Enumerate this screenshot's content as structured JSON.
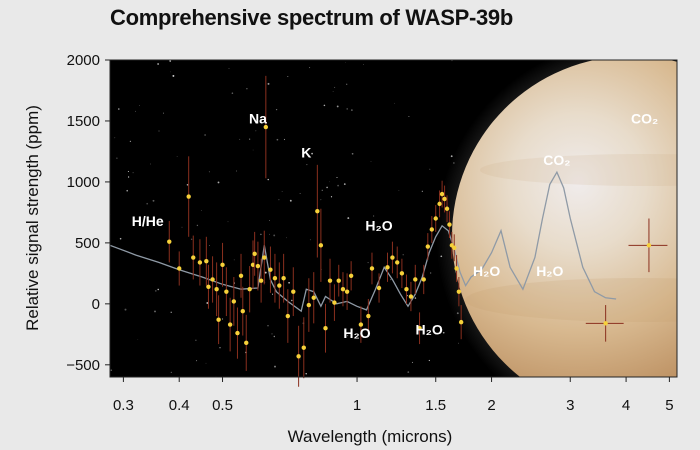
{
  "chart_data": {
    "type": "scatter",
    "title": "Comprehensive spectrum of WASP-39b",
    "xlabel": "Wavelength (microns)",
    "ylabel": "Relative signal strength (ppm)",
    "xscale": "log",
    "xlim": [
      0.28,
      5.2
    ],
    "ylim": [
      -600,
      2000
    ],
    "xticks": [
      0.3,
      0.4,
      0.5,
      1,
      1.5,
      2,
      3,
      4,
      5
    ],
    "xtick_labels": [
      "0.3",
      "0.4",
      "0.5",
      "1",
      "1.5",
      "2",
      "3",
      "4",
      "5"
    ],
    "yticks": [
      2000,
      1500,
      1000,
      500,
      0,
      -500
    ],
    "ytick_labels": [
      "2000",
      "1500",
      "1000",
      "500",
      "0",
      "−500"
    ],
    "grid": false,
    "colors": {
      "points": "#f6d13a",
      "error_bars": "#8a2f1e",
      "model_line": "#8f9aa6",
      "background": "#000000",
      "planet": "#d9b890"
    },
    "annotations": [
      {
        "label": "H/He",
        "x": 0.34,
        "y": 640
      },
      {
        "label": "Na",
        "x": 0.6,
        "y": 1480
      },
      {
        "label": "K",
        "x": 0.77,
        "y": 1200
      },
      {
        "label": "H₂O",
        "x": 1.12,
        "y": 600
      },
      {
        "label": "H₂O",
        "x": 1.0,
        "y": -280
      },
      {
        "label": "H₂O",
        "x": 1.45,
        "y": -250
      },
      {
        "label": "H₂O",
        "x": 1.95,
        "y": 230
      },
      {
        "label": "H₂O",
        "x": 2.7,
        "y": 230
      },
      {
        "label": "CO₂",
        "x": 2.8,
        "y": 1140
      },
      {
        "label": "CO₂",
        "x": 4.4,
        "y": 1480
      }
    ],
    "series": [
      {
        "type": "scatter",
        "points": [
          {
            "x": 0.38,
            "y": 510,
            "err": 170
          },
          {
            "x": 0.4,
            "y": 290,
            "err": 140
          },
          {
            "x": 0.42,
            "y": 880,
            "err": 330
          },
          {
            "x": 0.43,
            "y": 380,
            "err": 180
          },
          {
            "x": 0.445,
            "y": 340,
            "err": 190
          },
          {
            "x": 0.46,
            "y": 350,
            "err": 200
          },
          {
            "x": 0.465,
            "y": 140,
            "err": 180
          },
          {
            "x": 0.475,
            "y": 200,
            "err": 190
          },
          {
            "x": 0.485,
            "y": 120,
            "err": 220
          },
          {
            "x": 0.49,
            "y": -130,
            "err": 200
          },
          {
            "x": 0.5,
            "y": 320,
            "err": 180
          },
          {
            "x": 0.51,
            "y": 100,
            "err": 200
          },
          {
            "x": 0.52,
            "y": -170,
            "err": 220
          },
          {
            "x": 0.53,
            "y": 20,
            "err": 200
          },
          {
            "x": 0.54,
            "y": -240,
            "err": 210
          },
          {
            "x": 0.55,
            "y": 230,
            "err": 180
          },
          {
            "x": 0.555,
            "y": -60,
            "err": 200
          },
          {
            "x": 0.565,
            "y": -320,
            "err": 230
          },
          {
            "x": 0.575,
            "y": 120,
            "err": 190
          },
          {
            "x": 0.585,
            "y": 320,
            "err": 200
          },
          {
            "x": 0.59,
            "y": 410,
            "err": 180
          },
          {
            "x": 0.6,
            "y": 310,
            "err": 200
          },
          {
            "x": 0.61,
            "y": 190,
            "err": 180
          },
          {
            "x": 0.62,
            "y": 380,
            "err": 220
          },
          {
            "x": 0.625,
            "y": 1450,
            "err": 420
          },
          {
            "x": 0.64,
            "y": 280,
            "err": 190
          },
          {
            "x": 0.655,
            "y": 210,
            "err": 200
          },
          {
            "x": 0.67,
            "y": 150,
            "err": 190
          },
          {
            "x": 0.685,
            "y": 210,
            "err": 200
          },
          {
            "x": 0.7,
            "y": -100,
            "err": 220
          },
          {
            "x": 0.72,
            "y": 100,
            "err": 200
          },
          {
            "x": 0.74,
            "y": -430,
            "err": 250
          },
          {
            "x": 0.76,
            "y": -360,
            "err": 250
          },
          {
            "x": 0.78,
            "y": -10,
            "err": 220
          },
          {
            "x": 0.8,
            "y": 50,
            "err": 210
          },
          {
            "x": 0.815,
            "y": 760,
            "err": 380
          },
          {
            "x": 0.83,
            "y": 480,
            "err": 300
          },
          {
            "x": 0.85,
            "y": -200,
            "err": 200
          },
          {
            "x": 0.87,
            "y": 190,
            "err": 180
          },
          {
            "x": 0.89,
            "y": 10,
            "err": 150
          },
          {
            "x": 0.91,
            "y": 190,
            "err": 130
          },
          {
            "x": 0.93,
            "y": 120,
            "err": 140
          },
          {
            "x": 0.95,
            "y": 100,
            "err": 150
          },
          {
            "x": 0.97,
            "y": 230,
            "err": 120
          },
          {
            "x": 1.02,
            "y": -170,
            "err": 150
          },
          {
            "x": 1.06,
            "y": -100,
            "err": 140
          },
          {
            "x": 1.08,
            "y": 290,
            "err": 130
          },
          {
            "x": 1.12,
            "y": 130,
            "err": 120
          },
          {
            "x": 1.17,
            "y": 300,
            "err": 120
          },
          {
            "x": 1.2,
            "y": 380,
            "err": 130
          },
          {
            "x": 1.23,
            "y": 340,
            "err": 130
          },
          {
            "x": 1.26,
            "y": 250,
            "err": 120
          },
          {
            "x": 1.29,
            "y": 120,
            "err": 120
          },
          {
            "x": 1.32,
            "y": 60,
            "err": 120
          },
          {
            "x": 1.35,
            "y": 200,
            "err": 120
          },
          {
            "x": 1.38,
            "y": -200,
            "err": 130
          },
          {
            "x": 1.41,
            "y": 200,
            "err": 120
          },
          {
            "x": 1.44,
            "y": 470,
            "err": 110
          },
          {
            "x": 1.47,
            "y": 610,
            "err": 110
          },
          {
            "x": 1.5,
            "y": 700,
            "err": 110
          },
          {
            "x": 1.53,
            "y": 820,
            "err": 110
          },
          {
            "x": 1.55,
            "y": 900,
            "err": 110
          },
          {
            "x": 1.57,
            "y": 860,
            "err": 110
          },
          {
            "x": 1.59,
            "y": 780,
            "err": 110
          },
          {
            "x": 1.61,
            "y": 650,
            "err": 110
          },
          {
            "x": 1.63,
            "y": 480,
            "err": 110
          },
          {
            "x": 1.65,
            "y": 460,
            "err": 110
          },
          {
            "x": 1.67,
            "y": 290,
            "err": 110
          },
          {
            "x": 1.69,
            "y": 100,
            "err": 120
          },
          {
            "x": 1.71,
            "y": -150,
            "err": 140
          },
          {
            "x": 3.6,
            "y": -160,
            "err": 150,
            "xerr": 0.35
          },
          {
            "x": 4.5,
            "y": 480,
            "err": 220,
            "xerr": 0.45
          }
        ]
      },
      {
        "type": "line",
        "name": "",
        "x": [
          0.28,
          0.32,
          0.36,
          0.4,
          0.45,
          0.5,
          0.55,
          0.6,
          0.62,
          0.64,
          0.66,
          0.7,
          0.75,
          0.77,
          0.8,
          0.83,
          0.85,
          0.9,
          0.95,
          1.0,
          1.05,
          1.1,
          1.15,
          1.2,
          1.25,
          1.3,
          1.35,
          1.4,
          1.45,
          1.5,
          1.55,
          1.6,
          1.65,
          1.7,
          1.75,
          1.8,
          1.9,
          2.0,
          2.1,
          2.2,
          2.35,
          2.5,
          2.6,
          2.7,
          2.8,
          2.9,
          3.0,
          3.2,
          3.4,
          3.6,
          3.8
        ],
        "y": [
          480,
          400,
          340,
          280,
          220,
          160,
          120,
          130,
          480,
          200,
          100,
          20,
          -60,
          120,
          100,
          -20,
          60,
          0,
          20,
          -20,
          -50,
          120,
          300,
          200,
          80,
          -20,
          80,
          220,
          420,
          550,
          640,
          600,
          450,
          260,
          150,
          220,
          280,
          420,
          600,
          300,
          120,
          380,
          700,
          980,
          1080,
          950,
          700,
          300,
          100,
          50,
          40
        ]
      }
    ]
  }
}
